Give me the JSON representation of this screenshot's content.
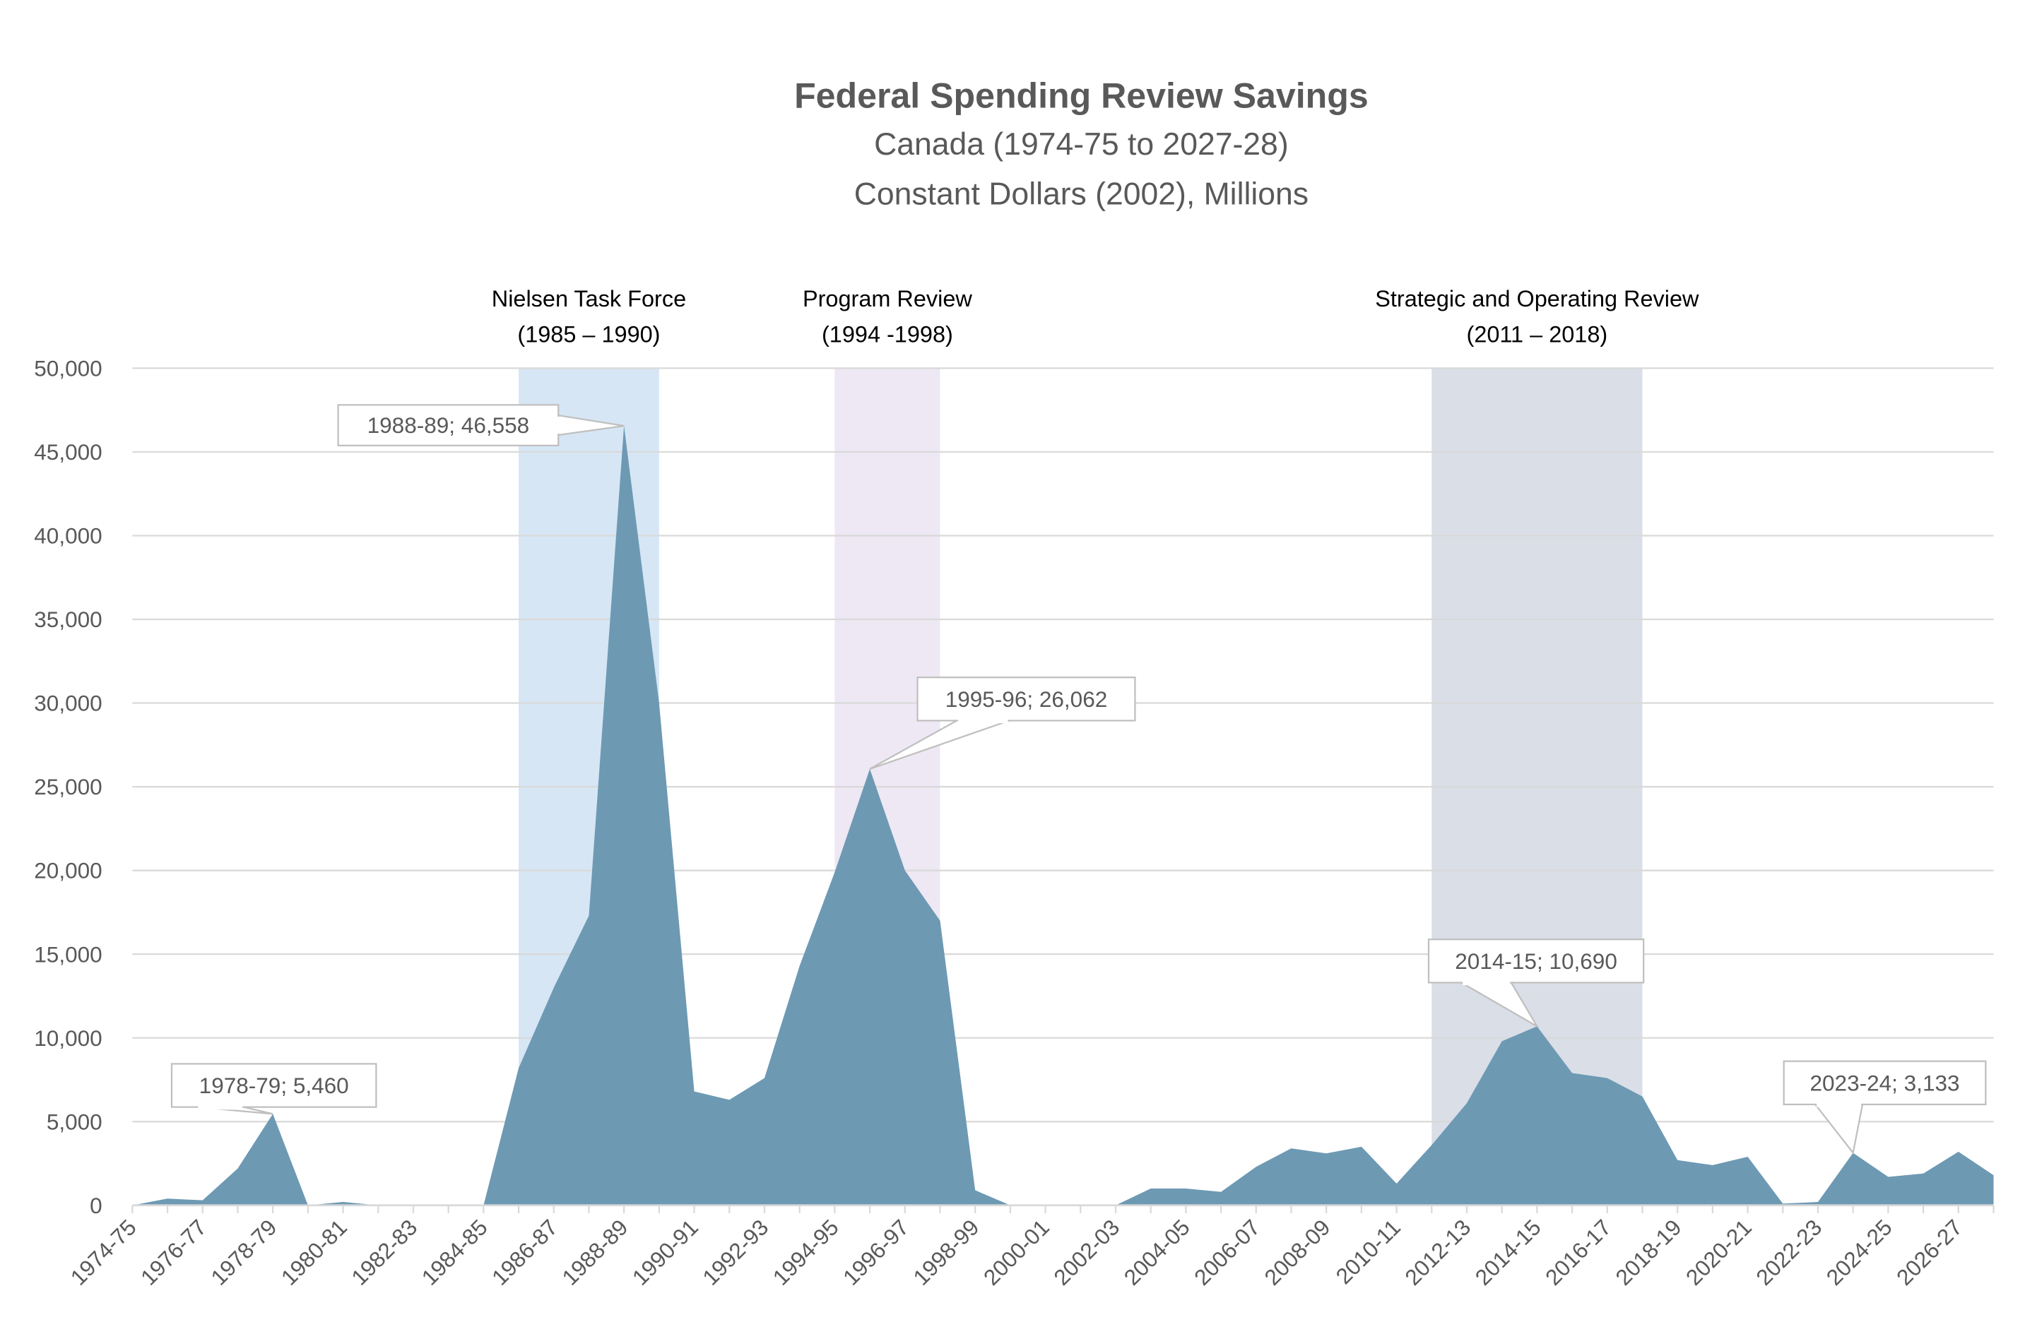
{
  "chart_data": {
    "type": "area",
    "title": "Federal Spending Review Savings",
    "subtitle_lines": [
      "Canada (1974-75 to 2027-28)",
      "Constant Dollars (2002), Millions"
    ],
    "xlabel": "",
    "ylabel": "",
    "ylim": [
      0,
      50000
    ],
    "yticks": [
      0,
      5000,
      10000,
      15000,
      20000,
      25000,
      30000,
      35000,
      40000,
      45000,
      50000
    ],
    "ytick_labels": [
      "0",
      "5,000",
      "10,000",
      "15,000",
      "20,000",
      "25,000",
      "30,000",
      "35,000",
      "40,000",
      "45,000",
      "50,000"
    ],
    "grid": "horizontal",
    "categories": [
      "1974-75",
      "1975-76",
      "1976-77",
      "1977-78",
      "1978-79",
      "1979-80",
      "1980-81",
      "1981-82",
      "1982-83",
      "1983-84",
      "1984-85",
      "1985-86",
      "1986-87",
      "1987-88",
      "1988-89",
      "1989-90",
      "1990-91",
      "1991-92",
      "1992-93",
      "1993-94",
      "1994-95",
      "1995-96",
      "1996-97",
      "1997-98",
      "1998-99",
      "1999-00",
      "2000-01",
      "2001-02",
      "2002-03",
      "2003-04",
      "2004-05",
      "2005-06",
      "2006-07",
      "2007-08",
      "2008-09",
      "2009-10",
      "2010-11",
      "2011-12",
      "2012-13",
      "2013-14",
      "2014-15",
      "2015-16",
      "2016-17",
      "2017-18",
      "2018-19",
      "2019-20",
      "2020-21",
      "2021-22",
      "2022-23",
      "2023-24",
      "2024-25",
      "2025-26",
      "2026-27",
      "2027-28"
    ],
    "xtick_labels": [
      "1974-75",
      "1976-77",
      "1978-79",
      "1980-81",
      "1982-83",
      "1984-85",
      "1986-87",
      "1988-89",
      "1990-91",
      "1992-93",
      "1994-95",
      "1996-97",
      "1998-99",
      "2000-01",
      "2002-03",
      "2004-05",
      "2006-07",
      "2008-09",
      "2010-11",
      "2012-13",
      "2014-15",
      "2016-17",
      "2018-19",
      "2020-21",
      "2022-23",
      "2024-25",
      "2026-27"
    ],
    "values": [
      0,
      400,
      300,
      2200,
      5460,
      0,
      200,
      0,
      0,
      0,
      0,
      8200,
      13000,
      17300,
      46558,
      30000,
      6800,
      6300,
      7600,
      14300,
      19900,
      26062,
      20000,
      17000,
      900,
      0,
      0,
      0,
      0,
      1000,
      1000,
      800,
      2300,
      3400,
      3100,
      3500,
      1300,
      3600,
      6100,
      9800,
      10690,
      7900,
      7600,
      6500,
      2700,
      2400,
      2900,
      100,
      200,
      3133,
      1700,
      1900,
      3200,
      1800
    ],
    "series_color": "#6d99b3",
    "bands": [
      {
        "label_lines": [
          "Nielsen Task Force",
          "(1985 – 1990)"
        ],
        "from": "1985-86",
        "to": "1989-90",
        "color": "#d6e6f4"
      },
      {
        "label_lines": [
          "Program Review",
          "(1994 -1998)"
        ],
        "from": "1994-95",
        "to": "1997-98",
        "color": "#ede8f3"
      },
      {
        "label_lines": [
          "Strategic and Operating Review",
          "(2011 – 2018)"
        ],
        "from": "2011-12",
        "to": "2017-18",
        "color": "#d9dee7"
      }
    ],
    "annotations": [
      {
        "category": "1978-79",
        "text": "1978-79; 5,460"
      },
      {
        "category": "1988-89",
        "text": "1988-89; 46,558"
      },
      {
        "category": "1995-96",
        "text": "1995-96; 26,062"
      },
      {
        "category": "2014-15",
        "text": "2014-15; 10,690"
      },
      {
        "category": "2023-24",
        "text": "2023-24; 3,133"
      }
    ]
  }
}
